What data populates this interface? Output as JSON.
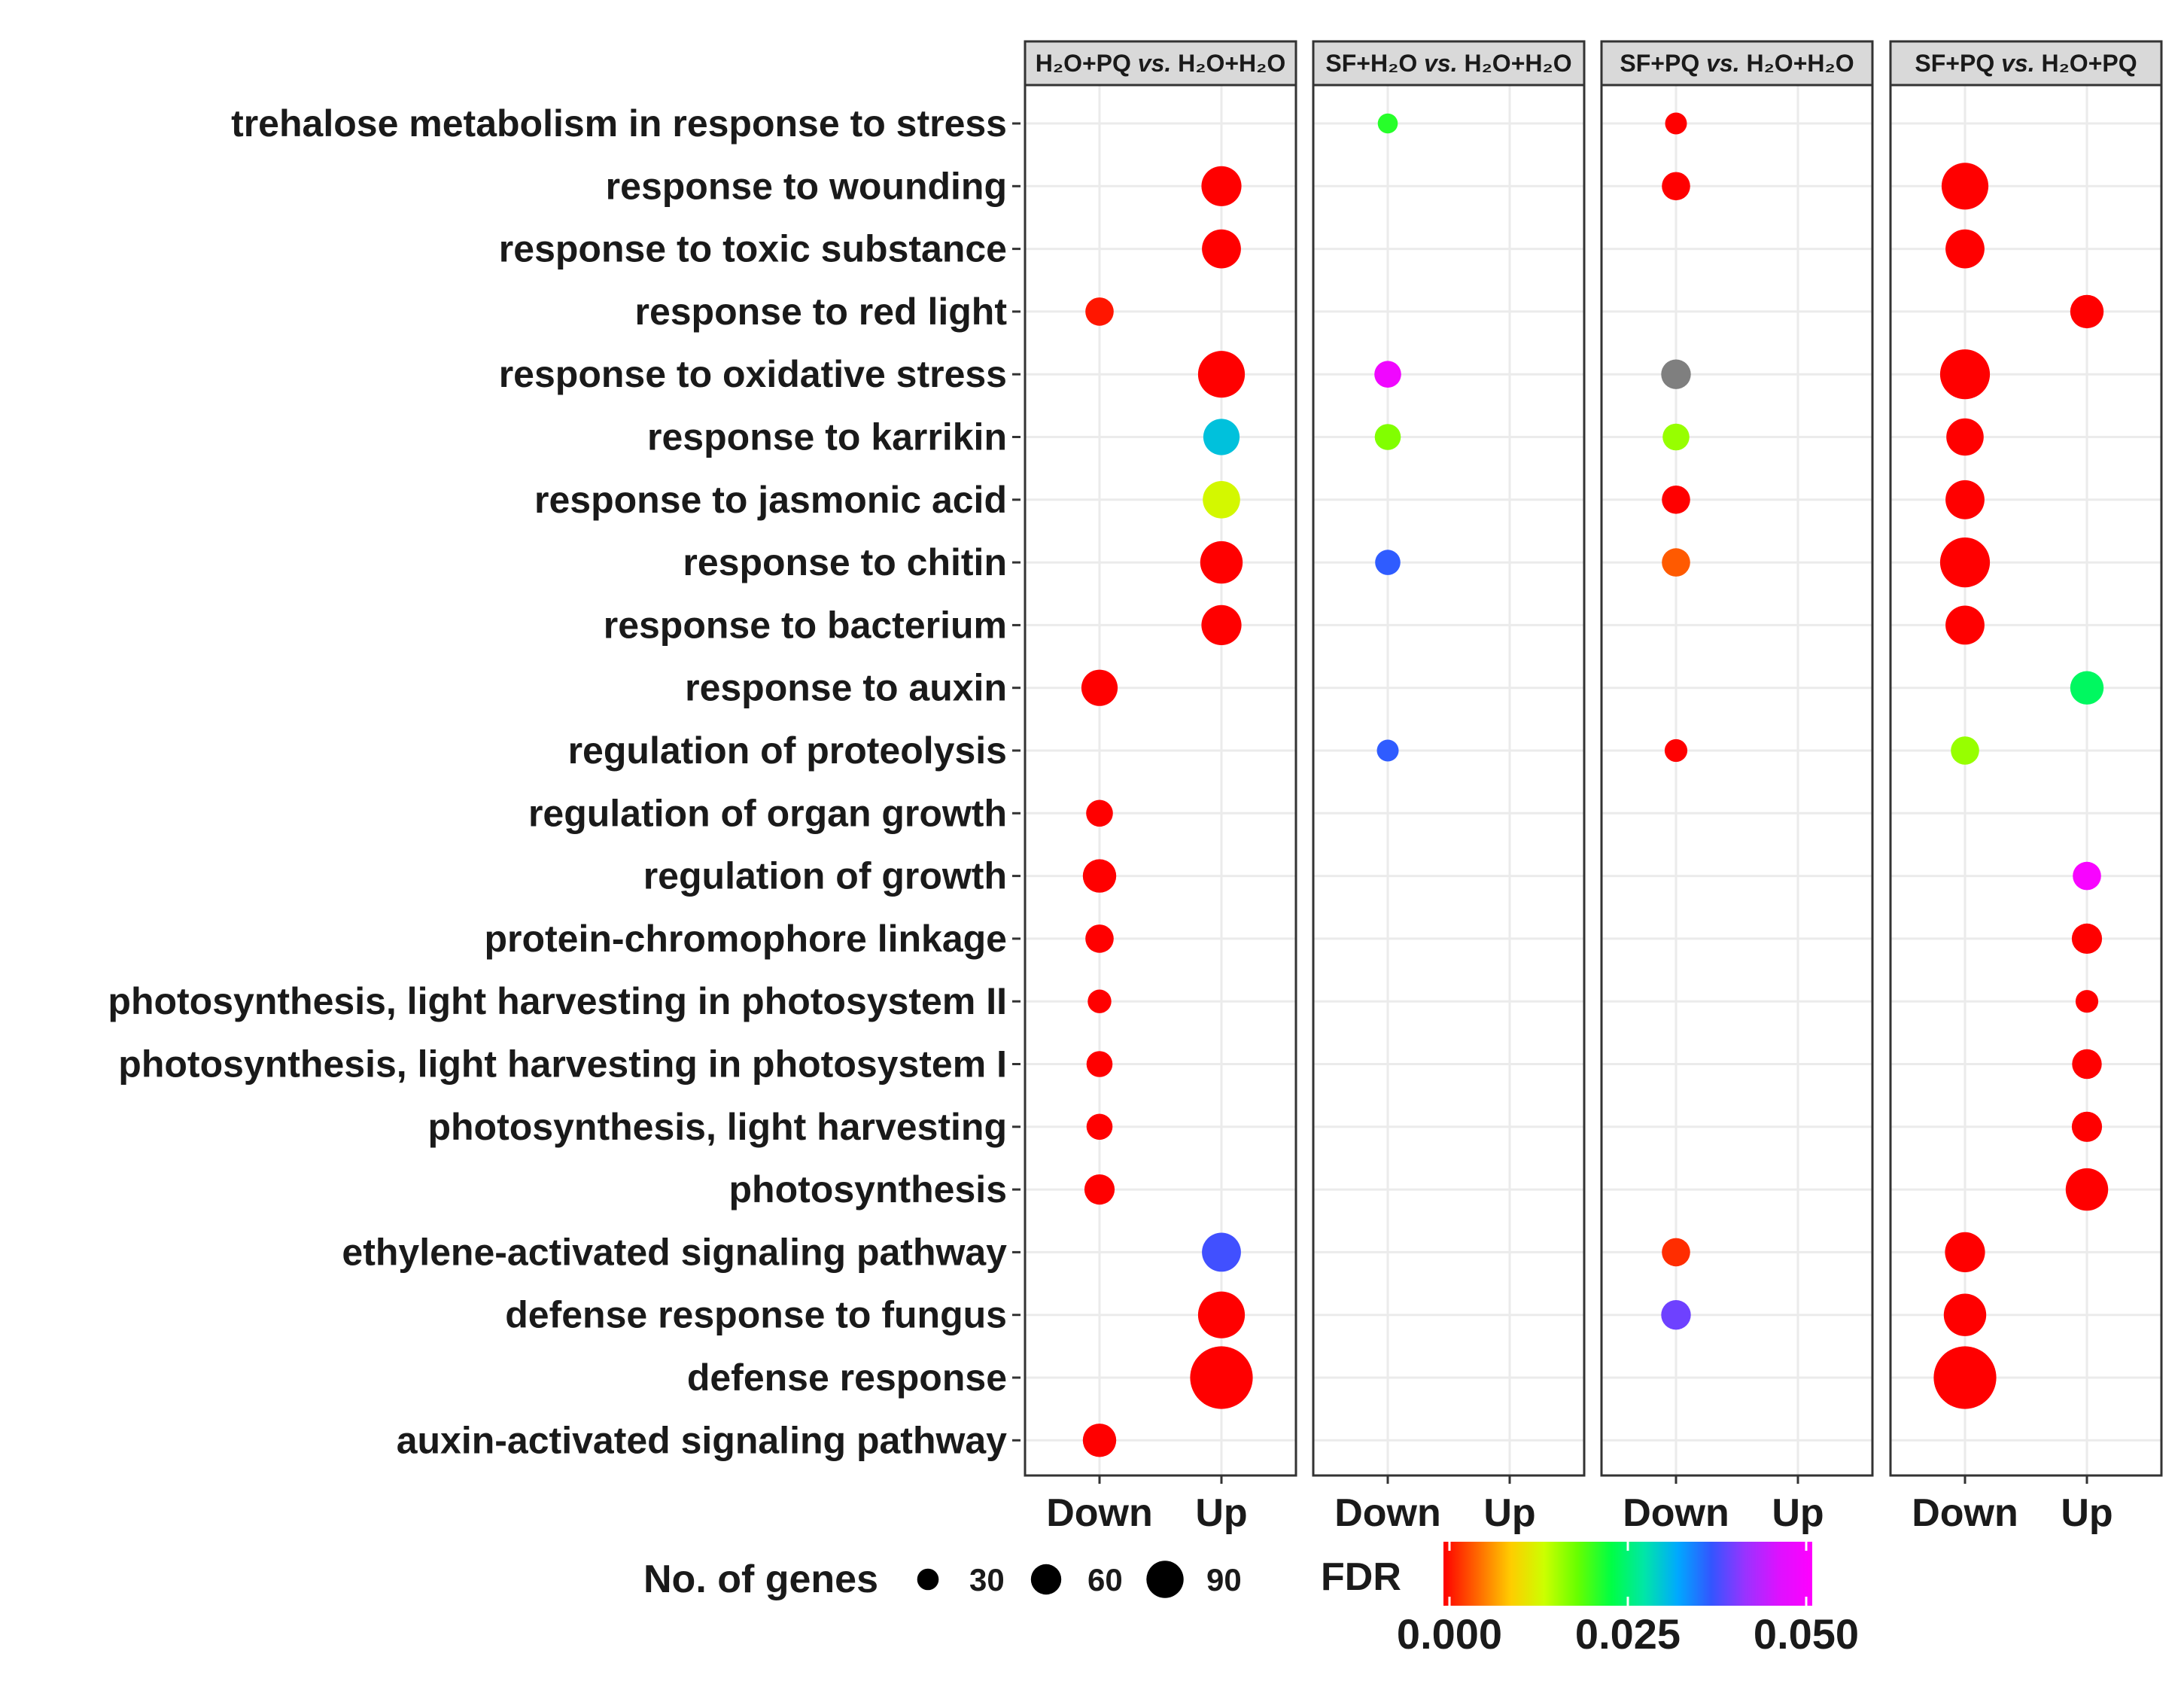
{
  "chart_data": {
    "type": "scatter",
    "subtype": "faceted-dotplot",
    "rows": [
      "trehalose metabolism in response to stress",
      "response to wounding",
      "response to toxic substance",
      "response to red light",
      "response to oxidative stress",
      "response to karrikin",
      "response to jasmonic acid",
      "response to chitin",
      "response to bacterium",
      "response to auxin",
      "regulation of proteolysis",
      "regulation of organ growth",
      "regulation of growth",
      "protein-chromophore linkage",
      "photosynthesis, light harvesting in photosystem II",
      "photosynthesis, light harvesting in photosystem I",
      "photosynthesis, light harvesting",
      "photosynthesis",
      "ethylene-activated signaling pathway",
      "defense response to fungus",
      "defense response",
      "auxin-activated signaling pathway"
    ],
    "x_categories": [
      "Down",
      "Up"
    ],
    "facets": [
      {
        "title": {
          "a": "H₂O+PQ",
          "vs": "vs.",
          "b": "H₂O+H₂O"
        },
        "points": [
          {
            "row": "response to wounding",
            "x": "Up",
            "genes": 40,
            "fdr": 0.0
          },
          {
            "row": "response to toxic substance",
            "x": "Up",
            "genes": 38,
            "fdr": 0.0
          },
          {
            "row": "response to red light",
            "x": "Down",
            "genes": 20,
            "fdr": 0.001
          },
          {
            "row": "response to oxidative stress",
            "x": "Up",
            "genes": 55,
            "fdr": 0.0
          },
          {
            "row": "response to karrikin",
            "x": "Up",
            "genes": 33,
            "fdr": 0.03
          },
          {
            "row": "response to jasmonic acid",
            "x": "Up",
            "genes": 35,
            "fdr": 0.013
          },
          {
            "row": "response to chitin",
            "x": "Up",
            "genes": 45,
            "fdr": 0.0
          },
          {
            "row": "response to bacterium",
            "x": "Up",
            "genes": 40,
            "fdr": 0.0
          },
          {
            "row": "response to auxin",
            "x": "Down",
            "genes": 33,
            "fdr": 0.0
          },
          {
            "row": "regulation of organ growth",
            "x": "Down",
            "genes": 18,
            "fdr": 0.0
          },
          {
            "row": "regulation of growth",
            "x": "Down",
            "genes": 28,
            "fdr": 0.0
          },
          {
            "row": "protein-chromophore linkage",
            "x": "Down",
            "genes": 20,
            "fdr": 0.0
          },
          {
            "row": "photosynthesis, light harvesting in photosystem II",
            "x": "Down",
            "genes": 14,
            "fdr": 0.0
          },
          {
            "row": "photosynthesis, light harvesting in photosystem I",
            "x": "Down",
            "genes": 17,
            "fdr": 0.0
          },
          {
            "row": "photosynthesis, light harvesting",
            "x": "Down",
            "genes": 17,
            "fdr": 0.0
          },
          {
            "row": "photosynthesis",
            "x": "Down",
            "genes": 23,
            "fdr": 0.0
          },
          {
            "row": "ethylene-activated signaling pathway",
            "x": "Up",
            "genes": 38,
            "fdr": 0.037
          },
          {
            "row": "defense response to fungus",
            "x": "Up",
            "genes": 55,
            "fdr": 0.0
          },
          {
            "row": "defense response",
            "x": "Up",
            "genes": 98,
            "fdr": 0.0
          },
          {
            "row": "auxin-activated signaling pathway",
            "x": "Down",
            "genes": 28,
            "fdr": 0.0
          }
        ]
      },
      {
        "title": {
          "a": "SF+H₂O",
          "vs": "vs.",
          "b": "H₂O+H₂O"
        },
        "points": [
          {
            "row": "trehalose metabolism in response to stress",
            "x": "Down",
            "genes": 10,
            "fdr": 0.021
          },
          {
            "row": "response to oxidative stress",
            "x": "Down",
            "genes": 18,
            "fdr": 0.048
          },
          {
            "row": "response to karrikin",
            "x": "Down",
            "genes": 17,
            "fdr": 0.017
          },
          {
            "row": "response to chitin",
            "x": "Down",
            "genes": 16,
            "fdr": 0.036
          },
          {
            "row": "regulation of proteolysis",
            "x": "Down",
            "genes": 12,
            "fdr": 0.036
          }
        ]
      },
      {
        "title": {
          "a": "SF+PQ",
          "vs": "vs.",
          "b": "H₂O+H₂O"
        },
        "points": [
          {
            "row": "trehalose metabolism in response to stress",
            "x": "Down",
            "genes": 12,
            "fdr": 0.0
          },
          {
            "row": "response to wounding",
            "x": "Down",
            "genes": 20,
            "fdr": 0.0
          },
          {
            "row": "response to oxidative stress",
            "x": "Down",
            "genes": 22,
            "fdr": null
          },
          {
            "row": "response to karrikin",
            "x": "Down",
            "genes": 18,
            "fdr": 0.016
          },
          {
            "row": "response to jasmonic acid",
            "x": "Down",
            "genes": 20,
            "fdr": 0.0
          },
          {
            "row": "response to chitin",
            "x": "Down",
            "genes": 20,
            "fdr": 0.004
          },
          {
            "row": "regulation of proteolysis",
            "x": "Down",
            "genes": 13,
            "fdr": 0.0
          },
          {
            "row": "ethylene-activated signaling pathway",
            "x": "Down",
            "genes": 20,
            "fdr": 0.002
          },
          {
            "row": "defense response to fungus",
            "x": "Down",
            "genes": 22,
            "fdr": 0.039
          }
        ]
      },
      {
        "title": {
          "a": "SF+PQ",
          "vs": "vs.",
          "b": "H₂O+PQ"
        },
        "points": [
          {
            "row": "response to wounding",
            "x": "Down",
            "genes": 55,
            "fdr": 0.0
          },
          {
            "row": "response to toxic substance",
            "x": "Down",
            "genes": 38,
            "fdr": 0.0
          },
          {
            "row": "response to red light",
            "x": "Up",
            "genes": 28,
            "fdr": 0.0
          },
          {
            "row": "response to oxidative stress",
            "x": "Down",
            "genes": 62,
            "fdr": 0.0
          },
          {
            "row": "response to karrikin",
            "x": "Down",
            "genes": 35,
            "fdr": 0.0
          },
          {
            "row": "response to jasmonic acid",
            "x": "Down",
            "genes": 38,
            "fdr": 0.0
          },
          {
            "row": "response to chitin",
            "x": "Down",
            "genes": 62,
            "fdr": 0.0
          },
          {
            "row": "response to bacterium",
            "x": "Down",
            "genes": 38,
            "fdr": 0.0
          },
          {
            "row": "response to auxin",
            "x": "Up",
            "genes": 28,
            "fdr": 0.024
          },
          {
            "row": "regulation of proteolysis",
            "x": "Down",
            "genes": 20,
            "fdr": 0.016
          },
          {
            "row": "regulation of growth",
            "x": "Up",
            "genes": 20,
            "fdr": 0.049
          },
          {
            "row": "protein-chromophore linkage",
            "x": "Up",
            "genes": 23,
            "fdr": 0.0
          },
          {
            "row": "photosynthesis, light harvesting in photosystem II",
            "x": "Up",
            "genes": 13,
            "fdr": 0.0
          },
          {
            "row": "photosynthesis, light harvesting in photosystem I",
            "x": "Up",
            "genes": 22,
            "fdr": 0.0
          },
          {
            "row": "photosynthesis, light harvesting",
            "x": "Up",
            "genes": 23,
            "fdr": 0.0
          },
          {
            "row": "photosynthesis",
            "x": "Up",
            "genes": 45,
            "fdr": 0.0
          },
          {
            "row": "ethylene-activated signaling pathway",
            "x": "Down",
            "genes": 40,
            "fdr": 0.0
          },
          {
            "row": "defense response to fungus",
            "x": "Down",
            "genes": 45,
            "fdr": 0.0
          },
          {
            "row": "defense response",
            "x": "Down",
            "genes": 98,
            "fdr": 0.0
          }
        ]
      }
    ],
    "size_legend": {
      "title": "No. of genes",
      "values": [
        30,
        60,
        90
      ],
      "labels": [
        "30",
        "60",
        "90"
      ]
    },
    "color_legend": {
      "title": "FDR",
      "range": [
        0,
        0.05
      ],
      "ticks": [
        "0.000",
        "0.025",
        "0.050"
      ],
      "stops": [
        "#ff0000",
        "#ff6600",
        "#ffcc00",
        "#ccff00",
        "#66ff00",
        "#00ff44",
        "#00e6a8",
        "#00a8ff",
        "#3355ff",
        "#9933ff",
        "#dd11ff",
        "#ff00ff"
      ],
      "na_color": "#7f7f7f"
    },
    "grid": true
  }
}
